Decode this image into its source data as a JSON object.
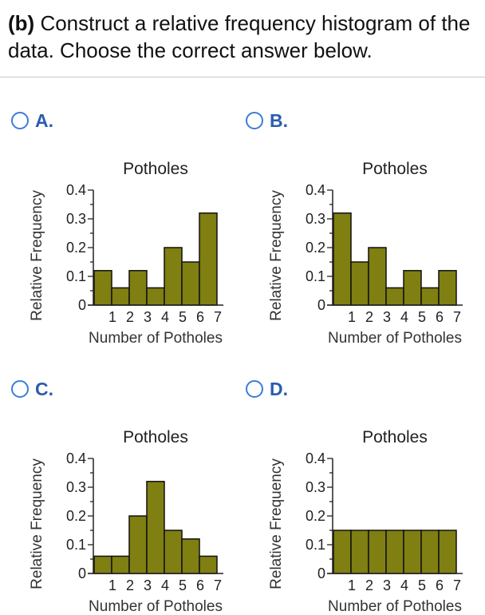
{
  "question": {
    "part": "(b)",
    "text": "Construct a relative frequency histogram of the data. Choose the correct answer below."
  },
  "colors": {
    "bar_fill": "#7f7f12",
    "bar_stroke": "#111111",
    "radio_border": "#3b7dd8",
    "letter": "#2a5db0"
  },
  "options": [
    {
      "letter": "A.",
      "selected": false
    },
    {
      "letter": "B.",
      "selected": false
    },
    {
      "letter": "C.",
      "selected": false
    },
    {
      "letter": "D.",
      "selected": false
    }
  ],
  "chart_data": [
    {
      "type": "bar",
      "option": "A.",
      "title": "Potholes",
      "xlabel": "Number of Potholes",
      "ylabel": "Relative Frequency",
      "categories": [
        "1",
        "2",
        "3",
        "4",
        "5",
        "6",
        "7"
      ],
      "values": [
        0.12,
        0.06,
        0.12,
        0.06,
        0.2,
        0.15,
        0.32
      ],
      "ylim": [
        0,
        0.4
      ],
      "yticks": [
        "0",
        "0.1",
        "0.2",
        "0.3",
        "0.4"
      ]
    },
    {
      "type": "bar",
      "option": "B.",
      "title": "Potholes",
      "xlabel": "Number of Potholes",
      "ylabel": "Relative Frequency",
      "categories": [
        "1",
        "2",
        "3",
        "4",
        "5",
        "6",
        "7"
      ],
      "values": [
        0.32,
        0.15,
        0.2,
        0.06,
        0.12,
        0.06,
        0.12
      ],
      "ylim": [
        0,
        0.4
      ],
      "yticks": [
        "0",
        "0.1",
        "0.2",
        "0.3",
        "0.4"
      ]
    },
    {
      "type": "bar",
      "option": "C.",
      "title": "Potholes",
      "xlabel": "Number of Potholes",
      "ylabel": "Relative Frequency",
      "categories": [
        "1",
        "2",
        "3",
        "4",
        "5",
        "6",
        "7"
      ],
      "values": [
        0.06,
        0.06,
        0.2,
        0.32,
        0.15,
        0.12,
        0.06
      ],
      "ylim": [
        0,
        0.4
      ],
      "yticks": [
        "0",
        "0.1",
        "0.2",
        "0.3",
        "0.4"
      ]
    },
    {
      "type": "bar",
      "option": "D.",
      "title": "Potholes",
      "xlabel": "Number of Potholes",
      "ylabel": "Relative Frequency",
      "categories": [
        "1",
        "2",
        "3",
        "4",
        "5",
        "6",
        "7"
      ],
      "values": [
        0.15,
        0.15,
        0.15,
        0.15,
        0.15,
        0.15,
        0.15
      ],
      "ylim": [
        0,
        0.4
      ],
      "yticks": [
        "0",
        "0.1",
        "0.2",
        "0.3",
        "0.4"
      ]
    }
  ]
}
